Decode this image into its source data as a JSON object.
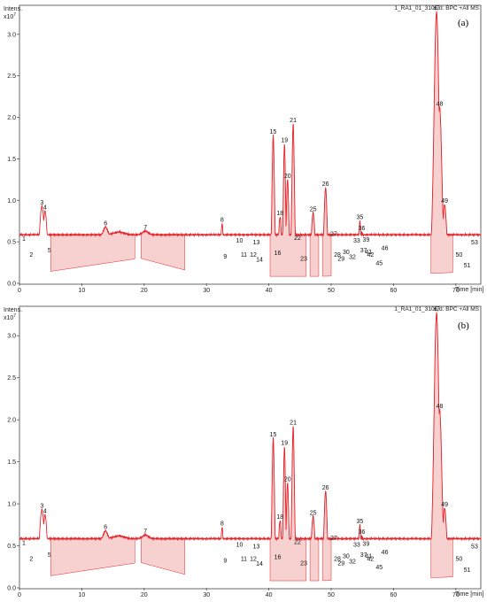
{
  "chart_data": [
    {
      "type": "line",
      "panel_label": "(a)",
      "header": "1_RA1_01_3106.d: BPC +All MS",
      "ylabel": "Intens.",
      "y_multiplier": "x10",
      "y_multiplier_exp": "7",
      "xlabel": "Time [min]",
      "xlim": [
        0,
        74
      ],
      "ylim": [
        0,
        3.35
      ],
      "x_ticks": [
        "0",
        "10",
        "20",
        "30",
        "40",
        "50",
        "60",
        "70"
      ],
      "y_ticks": [
        "0.0",
        "0.5",
        "1.0",
        "1.5",
        "2.0",
        "2.5",
        "3.0"
      ],
      "line_color": "#e4262c",
      "fill_color": "#f6c8c8"
    },
    {
      "type": "line",
      "panel_label": "(b)",
      "header": "1_RA1_01_3106.d: BPC +All MS",
      "ylabel": "Intens.",
      "y_multiplier": "x10",
      "y_multiplier_exp": "7",
      "xlabel": "Time [min]",
      "xlim": [
        0,
        74
      ],
      "ylim": [
        0,
        3.35
      ],
      "x_ticks": [
        "0",
        "10",
        "20",
        "30",
        "40",
        "50",
        "60",
        "70"
      ],
      "y_ticks": [
        "0.0",
        "0.5",
        "1.0",
        "1.5",
        "2.0",
        "2.5",
        "3.0"
      ],
      "line_color": "#e4262c",
      "fill_color": "#f6c8c8"
    }
  ],
  "trace": {
    "baseline": [
      [
        0,
        0.38
      ],
      [
        2,
        0.24
      ],
      [
        3,
        0.26
      ],
      [
        4,
        0.28
      ],
      [
        6,
        0.2
      ],
      [
        8,
        0.34
      ],
      [
        12,
        0.55
      ],
      [
        16,
        0.62
      ],
      [
        18,
        0.58
      ],
      [
        19,
        0.4
      ],
      [
        20,
        0.6
      ],
      [
        22,
        0.45
      ],
      [
        26,
        0.28
      ],
      [
        30,
        0.18
      ],
      [
        33,
        0.15
      ],
      [
        36,
        0.14
      ],
      [
        40,
        0.14
      ],
      [
        44,
        0.14
      ],
      [
        48,
        0.14
      ],
      [
        52,
        0.15
      ],
      [
        56,
        0.15
      ],
      [
        60,
        0.15
      ],
      [
        64,
        0.17
      ],
      [
        66,
        0.2
      ],
      [
        68.5,
        0.25
      ],
      [
        70,
        0.2
      ],
      [
        72,
        0.22
      ],
      [
        74,
        0.24
      ]
    ],
    "peaks": [
      {
        "label": "1",
        "t": 0.7,
        "h": 0.49,
        "w": 0.35
      },
      {
        "label": "2",
        "t": 1.9,
        "h": 0.3,
        "w": 0.25
      },
      {
        "label": "3",
        "t": 3.6,
        "h": 0.93,
        "w": 0.35
      },
      {
        "label": "4",
        "t": 4.1,
        "h": 0.87,
        "w": 0.3
      },
      {
        "label": "5",
        "t": 4.8,
        "h": 0.35,
        "w": 0.2
      },
      {
        "label": "6",
        "t": 13.8,
        "h": 0.68,
        "w": 0.3
      },
      {
        "label": "7",
        "t": 20.2,
        "h": 0.63,
        "w": 0.45
      },
      {
        "label": "8",
        "t": 32.5,
        "h": 0.72,
        "w": 0.2
      },
      {
        "label": "9",
        "t": 33.0,
        "h": 0.28,
        "w": 0.15
      },
      {
        "label": "10",
        "t": 35.3,
        "h": 0.47,
        "w": 0.18
      },
      {
        "label": "11",
        "t": 36.0,
        "h": 0.3,
        "w": 0.15
      },
      {
        "label": "12",
        "t": 37.5,
        "h": 0.3,
        "w": 0.15
      },
      {
        "label": "13",
        "t": 38.0,
        "h": 0.45,
        "w": 0.15
      },
      {
        "label": "14",
        "t": 38.5,
        "h": 0.24,
        "w": 0.12
      },
      {
        "label": "15",
        "t": 40.7,
        "h": 1.78,
        "w": 0.2
      },
      {
        "label": "16",
        "t": 41.4,
        "h": 0.32,
        "w": 0.12
      },
      {
        "label": "18",
        "t": 41.8,
        "h": 0.8,
        "w": 0.25
      },
      {
        "label": "19",
        "t": 42.5,
        "h": 1.68,
        "w": 0.18
      },
      {
        "label": "20",
        "t": 43.0,
        "h": 1.25,
        "w": 0.2
      },
      {
        "label": "21",
        "t": 43.9,
        "h": 1.92,
        "w": 0.2
      },
      {
        "label": "22",
        "t": 44.6,
        "h": 0.5,
        "w": 0.2
      },
      {
        "label": "23",
        "t": 45.6,
        "h": 0.25,
        "w": 0.18
      },
      {
        "label": "25",
        "t": 47.1,
        "h": 0.85,
        "w": 0.3
      },
      {
        "label": "26",
        "t": 49.1,
        "h": 1.15,
        "w": 0.25
      },
      {
        "label": "27",
        "t": 50.4,
        "h": 0.55,
        "w": 0.2
      },
      {
        "label": "28",
        "t": 51.0,
        "h": 0.3,
        "w": 0.15
      },
      {
        "label": "29",
        "t": 51.6,
        "h": 0.25,
        "w": 0.15
      },
      {
        "label": "30",
        "t": 52.4,
        "h": 0.33,
        "w": 0.15
      },
      {
        "label": "32",
        "t": 53.4,
        "h": 0.27,
        "w": 0.15
      },
      {
        "label": "33",
        "t": 54.1,
        "h": 0.47,
        "w": 0.15
      },
      {
        "label": "35",
        "t": 54.6,
        "h": 0.75,
        "w": 0.18
      },
      {
        "label": "36",
        "t": 54.9,
        "h": 0.62,
        "w": 0.15
      },
      {
        "label": "37",
        "t": 55.2,
        "h": 0.35,
        "w": 0.12
      },
      {
        "label": "39",
        "t": 55.6,
        "h": 0.48,
        "w": 0.15
      },
      {
        "label": "41",
        "t": 56.0,
        "h": 0.33,
        "w": 0.12
      },
      {
        "label": "42",
        "t": 56.3,
        "h": 0.3,
        "w": 0.12
      },
      {
        "label": "45",
        "t": 57.7,
        "h": 0.2,
        "w": 0.2
      },
      {
        "label": "46",
        "t": 58.6,
        "h": 0.38,
        "w": 0.25
      },
      {
        "label": "47",
        "t": 66.9,
        "h": 3.27,
        "w": 0.4
      },
      {
        "label": "48",
        "t": 67.4,
        "h": 2.12,
        "w": 0.35
      },
      {
        "label": "49",
        "t": 68.2,
        "h": 0.95,
        "w": 0.3
      },
      {
        "label": "50",
        "t": 70.5,
        "h": 0.3,
        "w": 0.25
      },
      {
        "label": "51",
        "t": 71.8,
        "h": 0.17,
        "w": 0.2
      },
      {
        "label": "53",
        "t": 73.0,
        "h": 0.45,
        "w": 0.2
      }
    ],
    "shaded_regions": [
      [
        5.0,
        18.5
      ],
      [
        19.5,
        26.5
      ],
      [
        40.2,
        46.0
      ],
      [
        46.6,
        48.0
      ],
      [
        48.6,
        50.0
      ],
      [
        66.0,
        69.5
      ]
    ]
  }
}
